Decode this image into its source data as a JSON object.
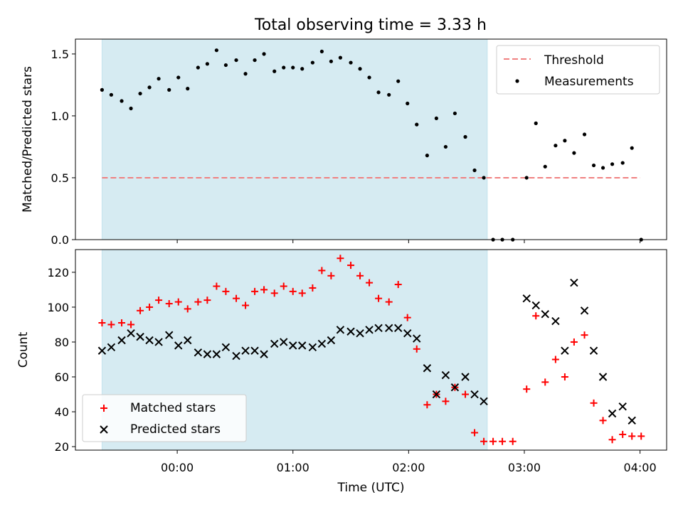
{
  "title": "Total observing time = 3.33 h",
  "colors": {
    "shade": "#add8e6",
    "threshold": "#f08080",
    "matched": "#ff0000",
    "predicted": "#000000",
    "measurements": "#000000"
  },
  "chart_data": [
    {
      "type": "scatter",
      "ylabel": "Matched/Predicted stars",
      "xlim": [
        -0.88,
        4.23
      ],
      "ylim": [
        0,
        1.62
      ],
      "yticks": [
        0.0,
        0.5,
        1.0,
        1.5
      ],
      "ytick_labels": [
        "0.0",
        "0.5",
        "1.0",
        "1.5"
      ],
      "shaded_span": [
        -0.65,
        2.68
      ],
      "threshold": {
        "name": "Threshold",
        "y": 0.5,
        "x": [
          -0.65,
          4.0
        ]
      },
      "legend": {
        "position": "top-right",
        "entries": [
          "Threshold",
          "Measurements"
        ]
      },
      "series": [
        {
          "name": "Measurements",
          "marker": "dot",
          "x": [
            -0.65,
            -0.57,
            -0.48,
            -0.4,
            -0.32,
            -0.24,
            -0.16,
            -0.07,
            0.01,
            0.09,
            0.18,
            0.26,
            0.34,
            0.42,
            0.51,
            0.59,
            0.67,
            0.75,
            0.84,
            0.92,
            1.0,
            1.08,
            1.17,
            1.25,
            1.33,
            1.41,
            1.5,
            1.58,
            1.66,
            1.74,
            1.83,
            1.91,
            1.99,
            2.07,
            2.16,
            2.24,
            2.32,
            2.4,
            2.49,
            2.57,
            2.65,
            2.73,
            2.81,
            2.9,
            3.02,
            3.1,
            3.18,
            3.27,
            3.35,
            3.43,
            3.52,
            3.6,
            3.68,
            3.76,
            3.85,
            3.93,
            4.01
          ],
          "y": [
            1.21,
            1.17,
            1.12,
            1.06,
            1.18,
            1.23,
            1.3,
            1.21,
            1.31,
            1.22,
            1.39,
            1.42,
            1.53,
            1.41,
            1.45,
            1.34,
            1.45,
            1.5,
            1.36,
            1.39,
            1.39,
            1.38,
            1.43,
            1.52,
            1.44,
            1.47,
            1.43,
            1.38,
            1.31,
            1.19,
            1.17,
            1.28,
            1.1,
            0.93,
            0.68,
            0.98,
            0.75,
            1.02,
            0.83,
            0.56,
            0.5,
            0.0,
            0.0,
            0.0,
            0.5,
            0.94,
            0.59,
            0.76,
            0.8,
            0.7,
            0.85,
            0.6,
            0.58,
            0.61,
            0.62,
            0.74,
            0.0
          ]
        }
      ]
    },
    {
      "type": "scatter",
      "xlabel": "Time (UTC)",
      "ylabel": "Count",
      "xlim": [
        -0.88,
        4.23
      ],
      "ylim": [
        18,
        133
      ],
      "xticks": [
        0,
        1,
        2,
        3,
        4
      ],
      "xtick_labels": [
        "00:00",
        "01:00",
        "02:00",
        "03:00",
        "04:00"
      ],
      "yticks": [
        20,
        40,
        60,
        80,
        100,
        120
      ],
      "ytick_labels": [
        "20",
        "40",
        "60",
        "80",
        "100",
        "120"
      ],
      "shaded_span": [
        -0.65,
        2.68
      ],
      "legend": {
        "position": "bottom-left",
        "entries": [
          "Matched stars",
          "Predicted stars"
        ]
      },
      "series": [
        {
          "name": "Matched stars",
          "marker": "plus",
          "x": [
            -0.65,
            -0.57,
            -0.48,
            -0.4,
            -0.32,
            -0.24,
            -0.16,
            -0.07,
            0.01,
            0.09,
            0.18,
            0.26,
            0.34,
            0.42,
            0.51,
            0.59,
            0.67,
            0.75,
            0.84,
            0.92,
            1.0,
            1.08,
            1.17,
            1.25,
            1.33,
            1.41,
            1.5,
            1.58,
            1.66,
            1.74,
            1.83,
            1.91,
            1.99,
            2.07,
            2.16,
            2.24,
            2.32,
            2.4,
            2.49,
            2.57,
            2.65,
            2.73,
            2.81,
            2.9,
            3.02,
            3.1,
            3.18,
            3.27,
            3.35,
            3.43,
            3.52,
            3.6,
            3.68,
            3.76,
            3.85,
            3.93,
            4.01
          ],
          "y": [
            91,
            90,
            91,
            90,
            98,
            100,
            104,
            102,
            103,
            99,
            103,
            104,
            112,
            109,
            105,
            101,
            109,
            110,
            108,
            112,
            109,
            108,
            111,
            121,
            118,
            128,
            124,
            118,
            114,
            105,
            103,
            113,
            94,
            76,
            44,
            50,
            46,
            54,
            50,
            28,
            23,
            23,
            23,
            23,
            53,
            95,
            57,
            70,
            60,
            80,
            84,
            45,
            35,
            24,
            27,
            26,
            26
          ]
        },
        {
          "name": "Predicted stars",
          "marker": "x",
          "x": [
            -0.65,
            -0.57,
            -0.48,
            -0.4,
            -0.32,
            -0.24,
            -0.16,
            -0.07,
            0.01,
            0.09,
            0.18,
            0.26,
            0.34,
            0.42,
            0.51,
            0.59,
            0.67,
            0.75,
            0.84,
            0.92,
            1.0,
            1.08,
            1.17,
            1.25,
            1.33,
            1.41,
            1.5,
            1.58,
            1.66,
            1.74,
            1.83,
            1.91,
            1.99,
            2.07,
            2.16,
            2.24,
            2.32,
            2.4,
            2.49,
            2.57,
            2.65,
            3.02,
            3.1,
            3.18,
            3.27,
            3.35,
            3.43,
            3.52,
            3.6,
            3.68,
            3.76,
            3.85,
            3.93
          ],
          "y": [
            75,
            77,
            81,
            85,
            83,
            81,
            80,
            84,
            78,
            81,
            74,
            73,
            73,
            77,
            72,
            75,
            75,
            73,
            79,
            80,
            78,
            78,
            77,
            79,
            81,
            87,
            86,
            85,
            87,
            88,
            88,
            88,
            85,
            82,
            65,
            50,
            61,
            54,
            60,
            50,
            46,
            105,
            101,
            96,
            92,
            75,
            114,
            98,
            75,
            60,
            39,
            43,
            35
          ]
        }
      ]
    }
  ]
}
